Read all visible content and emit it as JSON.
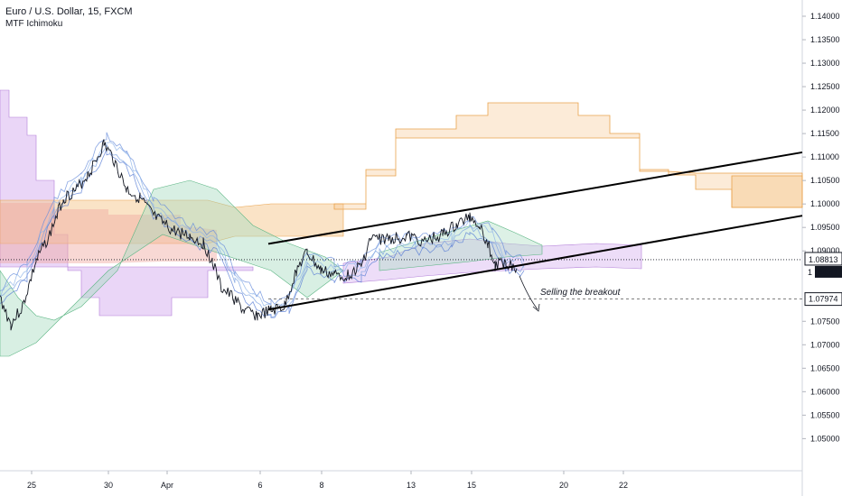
{
  "header": {
    "symbol_title": "Euro / U.S. Dollar, 15, FXCM",
    "indicator": "MTF Ichimoku"
  },
  "chart_data": {
    "type": "line",
    "title": "Euro / U.S. Dollar, 15, FXCM",
    "ylim": [
      1.0445,
      1.1425
    ],
    "y_ticks": [
      "1.14000",
      "1.13500",
      "1.13000",
      "1.12500",
      "1.12000",
      "1.11500",
      "1.11000",
      "1.10500",
      "1.10000",
      "1.09500",
      "1.09000",
      "1.08813",
      "1.07974",
      "1.07500",
      "1.07000",
      "1.06500",
      "1.06000",
      "1.05500",
      "1.05000"
    ],
    "x_ticks": [
      "25",
      "30",
      "Apr",
      "6",
      "8",
      "13",
      "15",
      "20",
      "22"
    ],
    "current_price": {
      "value": 1.08813,
      "label": "1.08813",
      "countdown": "04:47"
    },
    "target_level": {
      "value": 1.07974,
      "label": "1.07974"
    },
    "annotation": "Selling the breakout",
    "channel": {
      "upper": [
        [
          1.0915,
          1.111
        ]
      ],
      "lower": [
        [
          1.0775,
          1.0975
        ]
      ]
    },
    "grid": false,
    "colors": {
      "price": "#131722",
      "kumo_purple": "#d8b4f0",
      "kumo_orange": "#f6c78e",
      "kumo_green": "#a9dcc0",
      "kumo_red": "#f0a8a0",
      "accent_current": "#131722"
    }
  }
}
